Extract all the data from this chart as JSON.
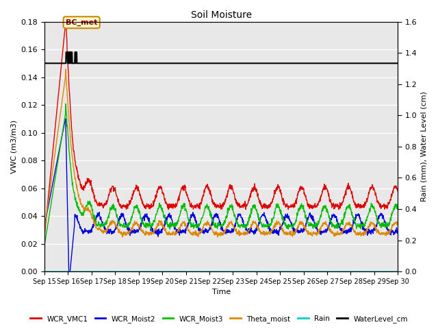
{
  "title": "Soil Moisture",
  "xlabel": "Time",
  "ylabel_left": "VWC (m3/m3)",
  "ylabel_right": "Rain (mm), Water Level (cm)",
  "ylim_left": [
    0.0,
    0.18
  ],
  "ylim_right": [
    0.0,
    1.6
  ],
  "plot_bg_color": "#e8e8e8",
  "annotation_text": "BC_met",
  "colors": {
    "WCR_VMC1": "#dd0000",
    "WCR_Moist2": "#0000dd",
    "WCR_Moist3": "#00bb00",
    "Theta_moist": "#dd8800",
    "Rain": "#00cccc",
    "WaterLevel_cm": "#000000"
  },
  "linewidths": {
    "WCR_VMC1": 1.0,
    "WCR_Moist2": 1.0,
    "WCR_Moist3": 1.0,
    "Theta_moist": 1.0,
    "Rain": 1.0,
    "WaterLevel_cm": 1.5
  },
  "x_tick_labels": [
    "Sep 15",
    "Sep 16",
    "Sep 17",
    "Sep 18",
    "Sep 19",
    "Sep 20",
    "Sep 21",
    "Sep 22",
    "Sep 23",
    "Sep 24",
    "Sep 25",
    "Sep 26",
    "Sep 27",
    "Sep 28",
    "Sep 29",
    "Sep 30"
  ],
  "yticks_left": [
    0.0,
    0.02,
    0.04,
    0.06,
    0.08,
    0.1,
    0.12,
    0.14,
    0.16,
    0.18
  ],
  "yticks_right": [
    0.0,
    0.2,
    0.4,
    0.6,
    0.8,
    1.0,
    1.2,
    1.4,
    1.6
  ]
}
